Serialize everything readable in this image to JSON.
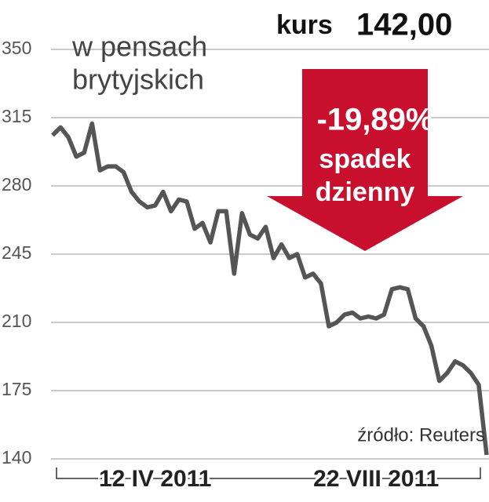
{
  "chart_data": {
    "type": "line",
    "unit_label": [
      "w pensach",
      "brytyjskich"
    ],
    "price_label": "kurs",
    "price": 142,
    "price_label_value": "142,00",
    "change": -19.89,
    "change_label": "-19,89%",
    "change_text": [
      "spadek",
      "dzienny"
    ],
    "source": "źródło: Reuters",
    "categories": [
      null,
      null,
      null,
      null,
      null,
      null,
      null,
      null,
      null,
      null,
      null,
      null,
      null,
      "12 IV 2011",
      null,
      null,
      null,
      null,
      null,
      null,
      null,
      null,
      null,
      null,
      null,
      null,
      null,
      null,
      null,
      null,
      null,
      null,
      null,
      null,
      null,
      null,
      null,
      null,
      null,
      null,
      null,
      "22 VIII 2011",
      null,
      null,
      null,
      null,
      null,
      null,
      null,
      null,
      null,
      null,
      null,
      null,
      null,
      null
    ],
    "series": [
      {
        "name": "kurs",
        "color": "#555555",
        "values": [
          306,
          310,
          305,
          295,
          297,
          312,
          288,
          290,
          290,
          287,
          277,
          272,
          269,
          270,
          277,
          267,
          273,
          272,
          258,
          261,
          251,
          267,
          267,
          235,
          266,
          255,
          253,
          259,
          243,
          250,
          243,
          245,
          233,
          235,
          230,
          208,
          210,
          214,
          215,
          212,
          213,
          212,
          214,
          227,
          228,
          227,
          212,
          208,
          198,
          180,
          184,
          190,
          188,
          184,
          178,
          142
        ]
      }
    ],
    "ylim": [
      140,
      350
    ],
    "yticks": [
      140,
      175,
      210,
      245,
      280,
      315,
      350
    ],
    "grid": true,
    "arrow_color": "#c8102e"
  }
}
